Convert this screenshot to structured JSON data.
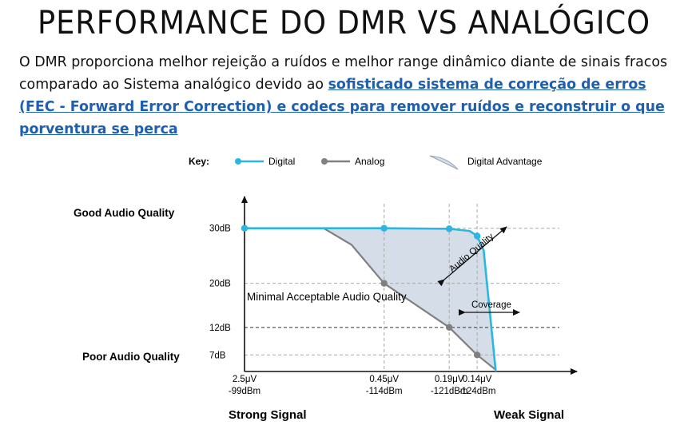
{
  "header": {
    "title": "PERFORMANCE DO DMR VS ANALÓGICO"
  },
  "intro": {
    "text_plain": "O DMR proporciona melhor rejeição a ruídos e melhor range dinâmico diante de sinais fracos comparado ao Sistema analógico devido ao ",
    "text_link": "sofisticado sistema de correção de erros (FEC - Forward Error Correction) e codecs para remover ruídos e reconstruir o que porventura se perca"
  },
  "colors": {
    "digital": "#2bb6e0",
    "analog": "#808080",
    "advantage_fill": "#d5dde9",
    "link": "#1f5fb0"
  },
  "chart_data": {
    "type": "line",
    "key_label": "Key:",
    "legend": [
      {
        "label": "Digital",
        "color": "#2bb6e0"
      },
      {
        "label": "Analog",
        "color": "#808080"
      },
      {
        "label": "Digital Advantage",
        "color": "#d5dde9"
      }
    ],
    "legend_placement": "top",
    "y_quality_labels": {
      "good": "Good Audio Quality",
      "poor": "Poor Audio Quality"
    },
    "y_ticks": [
      {
        "value": 30,
        "label": "30dB"
      },
      {
        "value": 20,
        "label": "20dB"
      },
      {
        "value": 12,
        "label": "12dB"
      },
      {
        "value": 7,
        "label": "7dB"
      }
    ],
    "x_ticks": [
      {
        "value": -99,
        "label1": "2.5μV",
        "label2": "-99dBm"
      },
      {
        "value": -114,
        "label1": "0.45μV",
        "label2": "-114dBm"
      },
      {
        "value": -121,
        "label1": "0.19μV",
        "label2": "-121dBm"
      },
      {
        "value": -124,
        "label1": "0.14μV",
        "label2": "-124dBm"
      }
    ],
    "x_end_labels": {
      "left": "Strong Signal",
      "right": "Weak Signal"
    },
    "xlim": [
      -99,
      -130
    ],
    "ylim": [
      4,
      33
    ],
    "threshold": {
      "value": 12,
      "label": "Minimal Acceptable Audio Quality"
    },
    "annotations": {
      "audio_quality": "Audio Quality",
      "coverage": "Coverage"
    },
    "series": [
      {
        "name": "Digital",
        "color": "#2bb6e0",
        "points": [
          [
            -99,
            30
          ],
          [
            -107.5,
            30
          ],
          [
            -114,
            30
          ],
          [
            -121,
            29.9
          ],
          [
            -123.2,
            29.5
          ],
          [
            -124,
            28.6
          ],
          [
            -124.7,
            26
          ],
          [
            -126,
            4
          ]
        ],
        "markers": [
          [
            -99,
            30
          ],
          [
            -114,
            30
          ],
          [
            -121,
            29.9
          ],
          [
            -124,
            28.6
          ]
        ]
      },
      {
        "name": "Analog",
        "color": "#808080",
        "points": [
          [
            -99,
            30
          ],
          [
            -107.5,
            30
          ],
          [
            -110.5,
            27
          ],
          [
            -114,
            20
          ],
          [
            -121,
            12
          ],
          [
            -124,
            7
          ],
          [
            -126,
            4.3
          ]
        ],
        "markers": [
          [
            -114,
            20
          ],
          [
            -121,
            12
          ],
          [
            -124,
            7
          ]
        ]
      }
    ]
  }
}
